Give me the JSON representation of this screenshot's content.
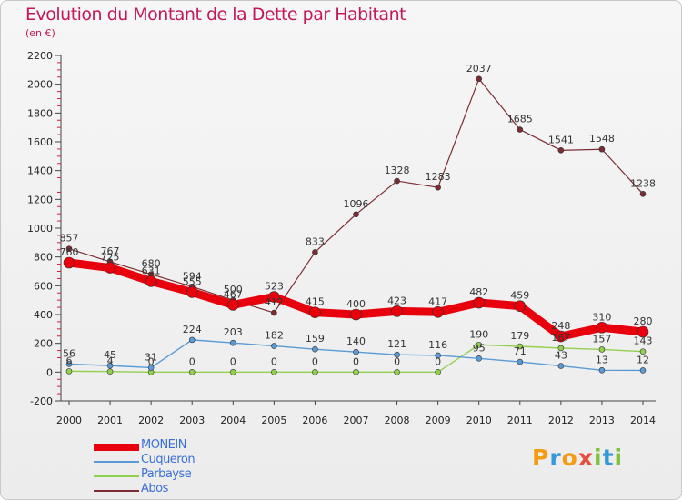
{
  "header": {
    "title": "Evolution du Montant de la Dette par Habitant",
    "unit": "(en €)"
  },
  "logo": {
    "letters": [
      "P",
      "r",
      "o",
      "x",
      "i",
      "t",
      "i"
    ],
    "colors": [
      "#f39c12",
      "#3498db",
      "#f39c12",
      "#e74c3c",
      "#7fc242",
      "#3498db",
      "#7fc242"
    ]
  },
  "chart_data": {
    "type": "line",
    "x": [
      "2000",
      "2001",
      "2002",
      "2003",
      "2004",
      "2005",
      "2006",
      "2007",
      "2008",
      "2009",
      "2010",
      "2011",
      "2012",
      "2013",
      "2014"
    ],
    "ylim": [
      -200,
      2200
    ],
    "yticks": [
      "-200",
      "0",
      "200",
      "400",
      "600",
      "800",
      "1000",
      "1200",
      "1400",
      "1600",
      "1800",
      "2000",
      "2200"
    ],
    "grid": false,
    "legend_position": "bottom-left",
    "series": [
      {
        "name": "MONEIN",
        "color": "#e8000c",
        "values": [
          760,
          725,
          631,
          555,
          467,
          523,
          415,
          400,
          423,
          417,
          482,
          459,
          248,
          310,
          280
        ],
        "labels": [
          "760",
          "725",
          "631",
          "555",
          "467",
          "523",
          "415",
          "400",
          "423",
          "417",
          "482",
          "459",
          "248",
          "310",
          "280"
        ]
      },
      {
        "name": "Cuqueron",
        "color": "#5b9bd5",
        "values": [
          56,
          45,
          31,
          224,
          203,
          182,
          159,
          140,
          121,
          116,
          95,
          71,
          43,
          13,
          12
        ],
        "labels": [
          "56",
          "45",
          "31",
          "224",
          "203",
          "182",
          "159",
          "140",
          "121",
          "116",
          "95",
          "71",
          "43",
          "13",
          "12"
        ]
      },
      {
        "name": "Parbayse",
        "color": "#92d050",
        "values": [
          6,
          4,
          0,
          0,
          0,
          0,
          0,
          0,
          0,
          0,
          190,
          179,
          167,
          157,
          143
        ],
        "labels": [
          "6",
          "4",
          "0",
          "0",
          "0",
          "0",
          "0",
          "0",
          "0",
          "0",
          "190",
          "179",
          "167",
          "157",
          "143"
        ]
      },
      {
        "name": "Abos",
        "color": "#7b2d33",
        "values": [
          857,
          767,
          680,
          594,
          500,
          412,
          833,
          1096,
          1328,
          1283,
          2037,
          1685,
          1541,
          1548,
          1238
        ],
        "labels": [
          "857",
          "767",
          "680",
          "594",
          "500",
          "412",
          "833",
          "1096",
          "1328",
          "1283",
          "2037",
          "1685",
          "1541",
          "1548",
          "1238"
        ]
      }
    ]
  }
}
